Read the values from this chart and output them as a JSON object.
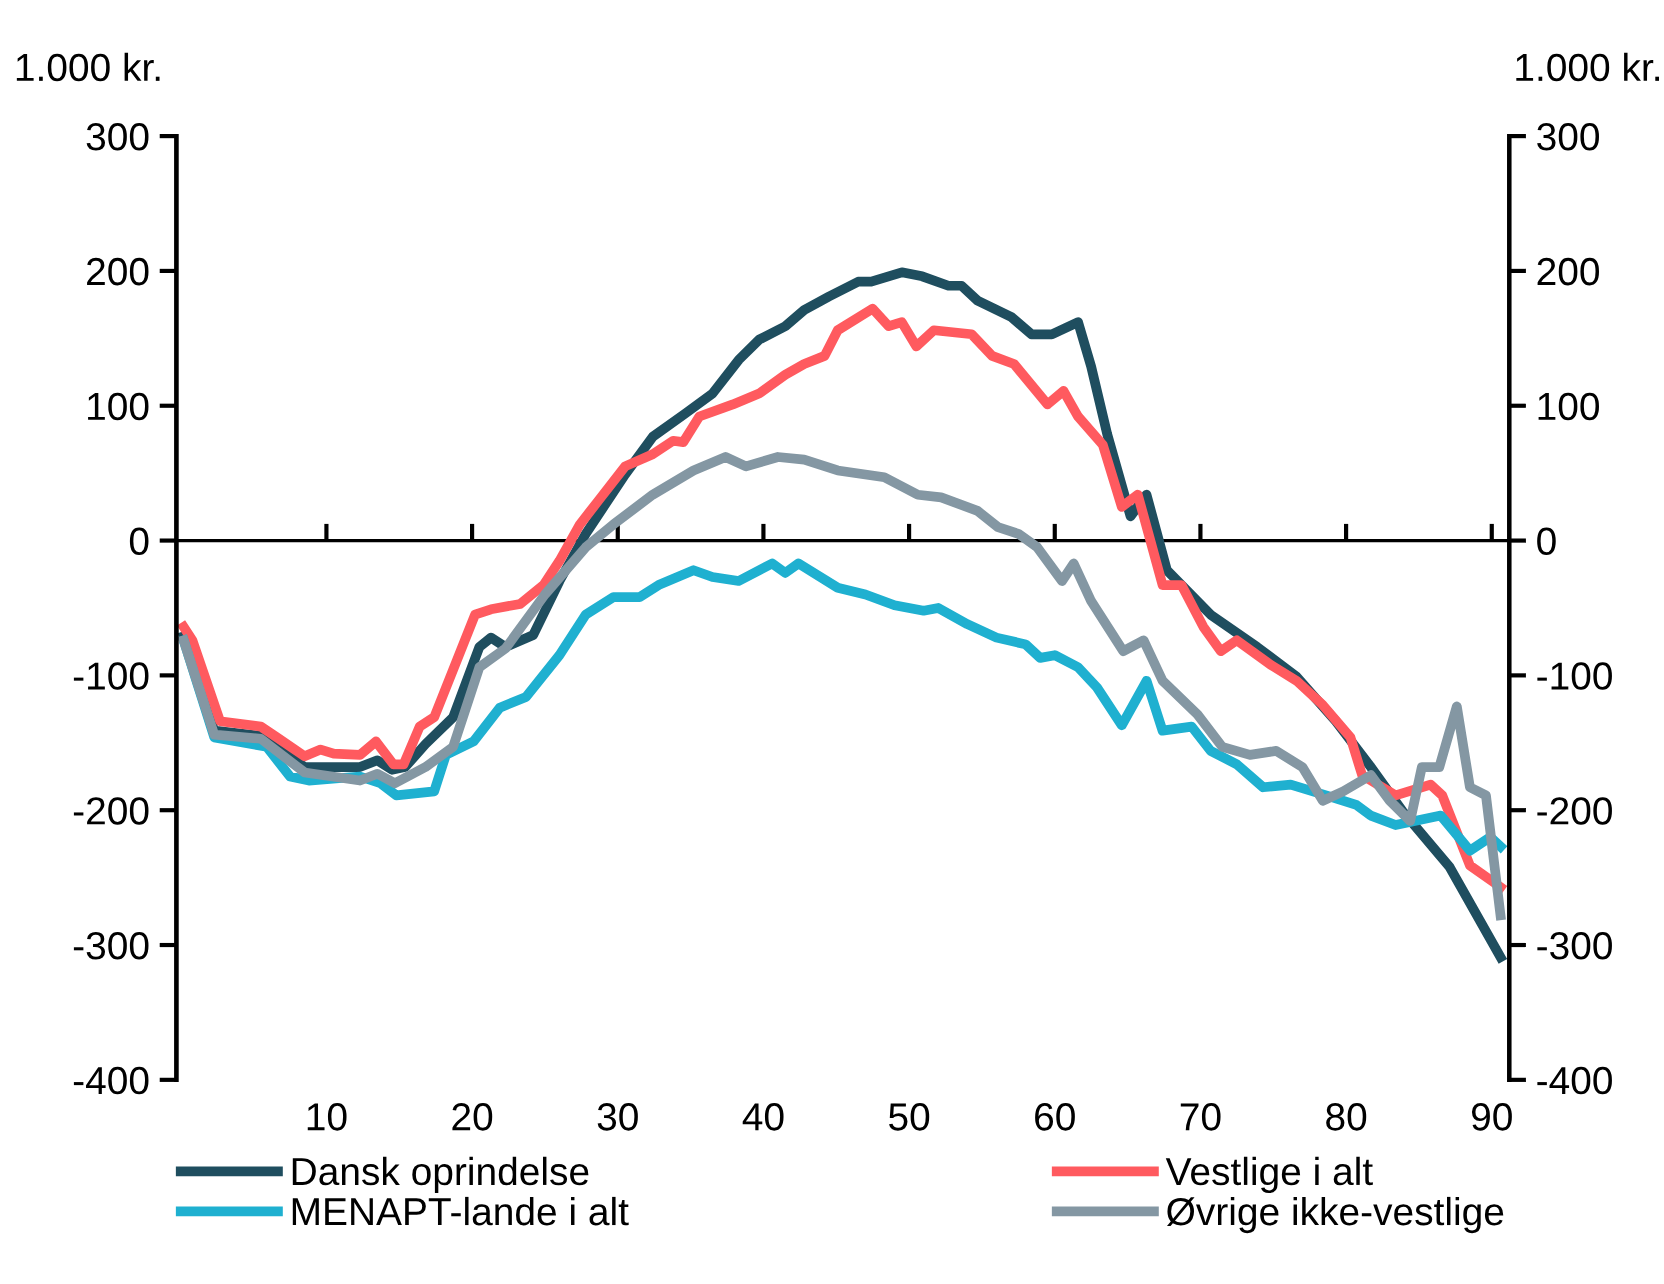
{
  "chart_data": {
    "type": "line",
    "ylabel": "1.000 kr.",
    "y2label": "1.000 kr.",
    "xlim": [
      -0.3,
      91.2
    ],
    "xticks": [
      10,
      20,
      30,
      40,
      50,
      60,
      70,
      80,
      90
    ],
    "ylim": [
      -400,
      300
    ],
    "yticks": [
      -400,
      -300,
      -200,
      -100,
      0,
      100,
      200,
      300
    ],
    "y2lim": [
      -400,
      300
    ],
    "y2ticks": [
      -400,
      -300,
      -200,
      -100,
      0,
      100,
      200,
      300
    ],
    "grid": false,
    "legend": "bottom",
    "marker": "none",
    "line_style": "solid",
    "ref_lines": [
      {
        "axis": "y",
        "value": 0,
        "label": null,
        "color": "#000000"
      }
    ],
    "series": [
      {
        "name": "Dansk oprindelse",
        "color": "#1f4e5f",
        "x": [
          0.2,
          2.3,
          5.5,
          8.5,
          12.3,
          13.5,
          14.5,
          15.4,
          16.8,
          18.7,
          20.5,
          21.3,
          22.3,
          24.2,
          26,
          27.8,
          30.5,
          32.4,
          34.6,
          36.5,
          38.3,
          39.7,
          41.5,
          42.8,
          44.5,
          46.5,
          47.4,
          49.5,
          50.9,
          52.7,
          53.6,
          54.7,
          57,
          58.4,
          59.8,
          61.6,
          62.5,
          63.6,
          65.2,
          66.3,
          67.7,
          70.7,
          73.9,
          76.6,
          79.3,
          81.7,
          83.9,
          87.1,
          90.6
        ],
        "values": [
          -71,
          -141,
          -145,
          -168,
          -168,
          -163,
          -170,
          -168,
          -151,
          -131,
          -79,
          -72,
          -79,
          -70,
          -30,
          5,
          49,
          77,
          94,
          109,
          134,
          149,
          159,
          171,
          181,
          192,
          192,
          199,
          196,
          189,
          189,
          178,
          166,
          153,
          153,
          162,
          129,
          79,
          18,
          34,
          -22,
          -55,
          -79,
          -101,
          -134,
          -168,
          -201,
          -242,
          -309
        ]
      },
      {
        "name": "Vestlige i alt",
        "color": "#ff5a5f",
        "x": [
          0.2,
          0.8,
          2.7,
          5.5,
          6.6,
          8.5,
          9.6,
          10.5,
          12.3,
          13.4,
          14.6,
          15.3,
          16.4,
          17.4,
          20.2,
          21.3,
          23.3,
          24.9,
          26,
          27.4,
          28.7,
          30.5,
          32.4,
          33.8,
          34.5,
          35.6,
          37.9,
          39.7,
          41.5,
          42.8,
          44.2,
          45.1,
          47.5,
          48.6,
          49.5,
          50.5,
          51.7,
          54.3,
          55.7,
          57.2,
          59.5,
          60.6,
          61.6,
          63.3,
          64.6,
          65.7,
          67.4,
          68.7,
          70.2,
          71.4,
          72.5,
          74.8,
          76.6,
          78.4,
          80.3,
          81.1,
          83.4,
          85.8,
          86.6,
          88.5,
          90.6
        ],
        "values": [
          -64,
          -74,
          -134,
          -138,
          -146,
          -160,
          -155,
          -158,
          -159,
          -149,
          -166,
          -166,
          -138,
          -131,
          -55,
          -51,
          -47,
          -33,
          -15,
          12,
          30,
          55,
          64,
          74,
          73,
          92,
          101,
          109,
          123,
          131,
          137,
          156,
          172,
          159,
          162,
          144,
          156,
          153,
          137,
          131,
          101,
          111,
          92,
          71,
          25,
          34,
          -33,
          -33,
          -64,
          -82,
          -74,
          -92,
          -104,
          -122,
          -146,
          -174,
          -189,
          -181,
          -189,
          -241,
          -257
        ]
      },
      {
        "name": "MENAPT-lande i alt",
        "color": "#1fb0d0",
        "x": [
          0.2,
          2.3,
          5.9,
          7.5,
          8.8,
          12.3,
          13.7,
          14.8,
          17.4,
          18.2,
          20.1,
          21.9,
          23.7,
          26,
          27.8,
          29.7,
          31.5,
          32.8,
          35.2,
          36.5,
          38.3,
          40.6,
          41.5,
          42.4,
          45.1,
          47,
          49,
          51,
          52,
          54,
          56,
          58,
          59,
          60,
          61.6,
          62.9,
          64.6,
          66.3,
          67.4,
          69.4,
          70.7,
          72.5,
          74.3,
          76.2,
          78.9,
          80.7,
          81.7,
          83.4,
          86.5,
          88.5,
          89.9,
          90.6
        ],
        "values": [
          -74,
          -146,
          -153,
          -175,
          -178,
          -175,
          -180,
          -189,
          -186,
          -159,
          -149,
          -124,
          -116,
          -85,
          -55,
          -42,
          -42,
          -33,
          -22,
          -27,
          -30,
          -17,
          -24,
          -17,
          -35,
          -40,
          -48,
          -52,
          -50,
          -62,
          -72,
          -77,
          -87,
          -85,
          -94,
          -109,
          -137,
          -104,
          -141,
          -138,
          -156,
          -166,
          -183,
          -181,
          -190,
          -196,
          -204,
          -211,
          -204,
          -230,
          -220,
          -227
        ]
      },
      {
        "name": "Øvrige ikke-vestlige",
        "color": "#8497a3",
        "x": [
          0.2,
          2.3,
          5.5,
          8.5,
          12.3,
          13.5,
          14.7,
          16.8,
          18.7,
          20.5,
          22.3,
          25,
          27.8,
          29.7,
          32.4,
          35.2,
          37.4,
          38.8,
          41,
          42.8,
          45.1,
          48.3,
          50.6,
          52.2,
          54.7,
          56.1,
          57.5,
          58.8,
          60.5,
          61.3,
          62.5,
          64.7,
          66.1,
          67.4,
          69.8,
          71.5,
          73.4,
          75.2,
          77,
          78.4,
          79.8,
          81.7,
          83,
          84.4,
          85.2,
          86.4,
          87.6,
          88.5,
          89.6,
          90.6
        ],
        "values": [
          -74,
          -144,
          -147,
          -172,
          -178,
          -173,
          -180,
          -168,
          -153,
          -94,
          -80,
          -40,
          -5,
          12,
          34,
          52,
          62,
          55,
          62,
          60,
          52,
          47,
          34,
          32,
          22,
          10,
          5,
          -5,
          -30,
          -17,
          -45,
          -82,
          -74,
          -104,
          -129,
          -153,
          -159,
          -156,
          -168,
          -193,
          -186,
          -174,
          -193,
          -208,
          -168,
          -168,
          -123,
          -183,
          -189,
          -278
        ]
      }
    ]
  }
}
